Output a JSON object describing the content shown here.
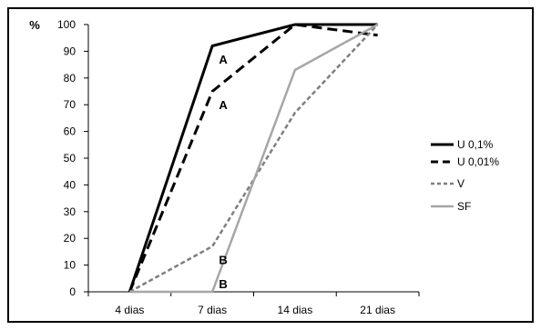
{
  "chart_data": {
    "type": "line",
    "title": "",
    "xlabel": "",
    "ylabel": "%",
    "ylim": [
      0,
      100
    ],
    "yticks": [
      0,
      10,
      20,
      30,
      40,
      50,
      60,
      70,
      80,
      90,
      100
    ],
    "categories": [
      "4 dias",
      "7 dias",
      "14 dias",
      "21 dias"
    ],
    "grid": false,
    "legend_position": "right",
    "series": [
      {
        "name": "U 0,1%",
        "values": [
          0,
          92,
          100,
          100
        ],
        "color": "#000000",
        "style": "solid"
      },
      {
        "name": "U 0,01%",
        "values": [
          0,
          75,
          100,
          96
        ],
        "color": "#000000",
        "style": "dashed"
      },
      {
        "name": "V",
        "values": [
          0,
          17,
          67,
          100
        ],
        "color": "#7f7f7f",
        "style": "short-dashed"
      },
      {
        "name": "SF",
        "values": [
          0,
          0,
          83,
          100
        ],
        "color": "#a6a6a6",
        "style": "solid"
      }
    ],
    "annotations": [
      {
        "text": "A",
        "category": "7 dias",
        "y": 87
      },
      {
        "text": "A",
        "category": "7 dias",
        "y": 70
      },
      {
        "text": "B",
        "category": "7 dias",
        "y": 12
      },
      {
        "text": "B",
        "category": "7 dias",
        "y": 3
      }
    ]
  }
}
